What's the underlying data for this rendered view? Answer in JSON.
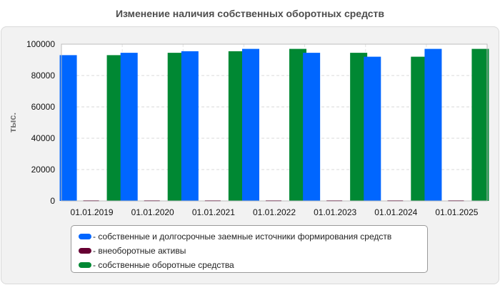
{
  "title": "Изменение наличия собственных оборотных средств",
  "chart_data": {
    "type": "bar",
    "title": "Изменение наличия собственных оборотных средств",
    "ylabel": "тыс.",
    "xlabel": "",
    "ylim": [
      0,
      100000
    ],
    "yticks": [
      0,
      20000,
      40000,
      60000,
      80000,
      100000
    ],
    "grid": true,
    "legend_position": "bottom",
    "categories": [
      "01.01.2019",
      "01.01.2020",
      "01.01.2021",
      "01.01.2022",
      "01.01.2023",
      "01.01.2024",
      "01.01.2025"
    ],
    "series": [
      {
        "name": "- собственные и долгосрочные заемные источники формирования средств",
        "color": "#0066ff",
        "values": [
          93000,
          94500,
          95500,
          97000,
          94500,
          92000,
          97000
        ]
      },
      {
        "name": "- внеоборотные активы",
        "color": "#660033",
        "values": [
          400,
          400,
          400,
          400,
          400,
          400,
          400
        ]
      },
      {
        "name": "- собственные оборотные средства",
        "color": "#008833",
        "values": [
          93000,
          94500,
          95500,
          97000,
          94500,
          92000,
          97000
        ]
      }
    ]
  }
}
